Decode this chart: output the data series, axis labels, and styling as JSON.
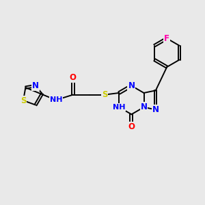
{
  "background_color": "#e9e9e9",
  "bond_color": "#000000",
  "atom_colors": {
    "N": "#0000ff",
    "O": "#ff0000",
    "S": "#cccc00",
    "F": "#ff00aa",
    "H": "#808080",
    "C": "#000000"
  },
  "font_size": 8.5,
  "fig_width": 3.0,
  "fig_height": 3.0,
  "dpi": 100
}
